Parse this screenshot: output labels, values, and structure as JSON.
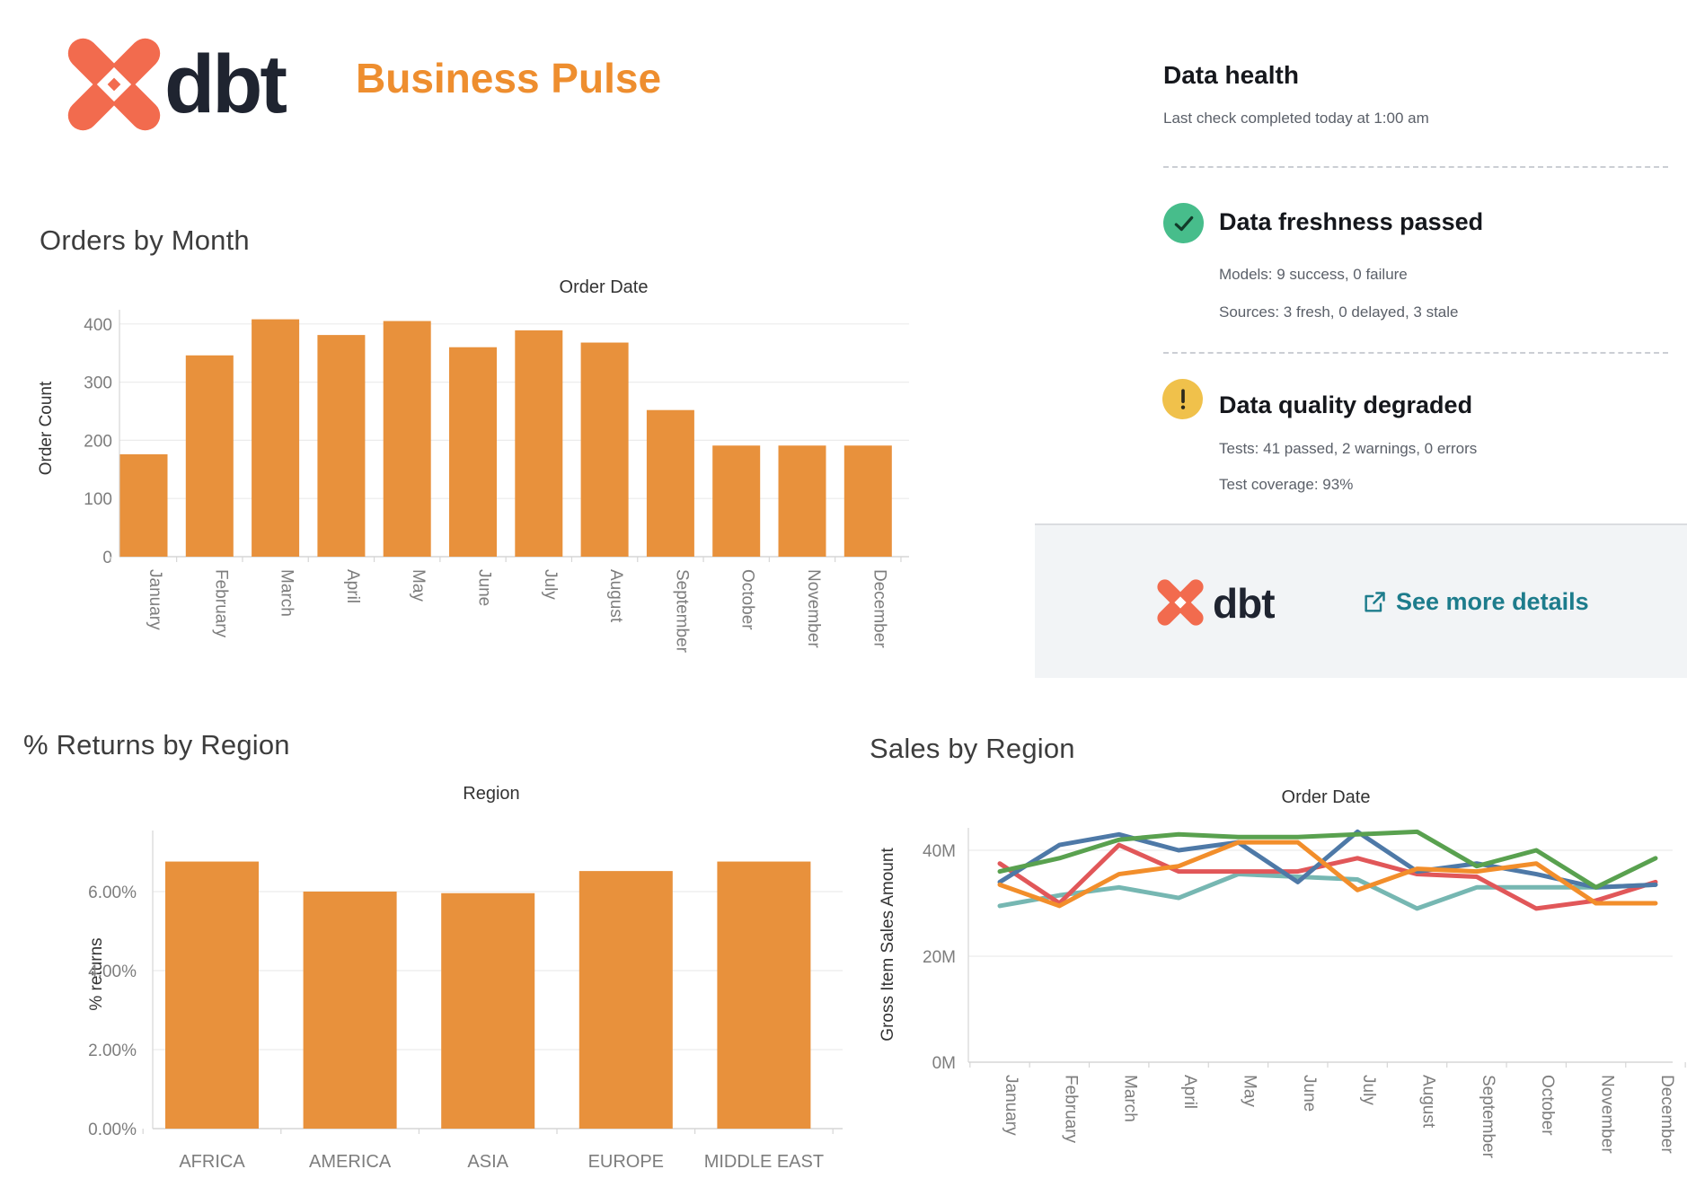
{
  "header": {
    "logo": "dbt-logo",
    "wordmark": "dbt",
    "title": "Business Pulse"
  },
  "data_health": {
    "title": "Data health",
    "subtitle": "Last check completed today at 1:00 am",
    "freshness": {
      "icon": "check-circle",
      "status_color": "#47BD8B",
      "title": "Data freshness passed",
      "models": "Models: 9 success, 0 failure",
      "sources": "Sources: 3 fresh, 0 delayed, 3 stale"
    },
    "quality": {
      "icon": "warning-circle",
      "status_color": "#F0C14B",
      "title": "Data quality degraded",
      "tests": "Tests: 41 passed, 2 warnings, 0 errors",
      "coverage": "Test coverage: 93%"
    },
    "footer": {
      "wordmark": "dbt",
      "link_label": "See more details",
      "link_color": "#1D7C8C"
    }
  },
  "chart_data": [
    {
      "type": "bar",
      "title": "Orders by Month",
      "axis_title": "Order Date",
      "xlabel": "Order Date",
      "ylabel": "Order Count",
      "categories": [
        "January",
        "February",
        "March",
        "April",
        "May",
        "June",
        "July",
        "August",
        "September",
        "October",
        "November",
        "December"
      ],
      "values": [
        176,
        346,
        408,
        381,
        405,
        360,
        389,
        368,
        252,
        191,
        191,
        191
      ],
      "yticks": [
        0,
        100,
        200,
        300,
        400
      ],
      "ytick_labels": [
        "0",
        "100",
        "200",
        "300",
        "400"
      ],
      "ylim": [
        0,
        425
      ],
      "bar_color": "#E8913C",
      "grid": true,
      "legend": "none"
    },
    {
      "type": "bar",
      "title": "% Returns by Region",
      "axis_title": "Region",
      "xlabel": "Region",
      "ylabel": "% returns",
      "categories": [
        "AFRICA",
        "AMERICA",
        "ASIA",
        "EUROPE",
        "MIDDLE EAST"
      ],
      "values": [
        6.76,
        6.0,
        5.96,
        6.52,
        6.76
      ],
      "yticks": [
        0,
        2,
        4,
        6
      ],
      "ytick_labels": [
        "0.00%",
        "2.00%",
        "4.00%",
        "6.00%"
      ],
      "ylim": [
        0,
        7.5
      ],
      "bar_color": "#E8913C",
      "grid": true,
      "legend": "none"
    },
    {
      "type": "line",
      "title": "Sales by Region",
      "axis_title": "Order Date",
      "xlabel": "Order Date",
      "ylabel": "Gross Item Sales Amount",
      "categories": [
        "January",
        "February",
        "March",
        "April",
        "May",
        "June",
        "July",
        "August",
        "September",
        "October",
        "November",
        "December"
      ],
      "yticks": [
        0,
        20,
        40
      ],
      "ytick_labels": [
        "0M",
        "20M",
        "40M"
      ],
      "ylim": [
        0,
        44
      ],
      "unit": "M",
      "grid": true,
      "legend": "none",
      "series": [
        {
          "name": "series-teal",
          "color": "#76B7B2",
          "values": [
            29.5,
            31.5,
            33,
            31,
            35.5,
            35,
            34.5,
            29,
            33,
            33,
            33,
            33.5
          ]
        },
        {
          "name": "series-red",
          "color": "#E15759",
          "values": [
            37.5,
            30,
            41,
            36,
            36,
            36,
            38.5,
            35.5,
            35,
            29,
            30.5,
            34
          ]
        },
        {
          "name": "series-blue",
          "color": "#4E79A7",
          "values": [
            34,
            41,
            43,
            40,
            41.5,
            34,
            43.5,
            36,
            37.5,
            35.5,
            33,
            33.5
          ]
        },
        {
          "name": "series-orange",
          "color": "#F28E2B",
          "values": [
            33.5,
            29.5,
            35.5,
            37,
            41.5,
            41.5,
            32.5,
            36.5,
            36,
            37.5,
            30,
            30
          ]
        },
        {
          "name": "series-green",
          "color": "#59A14F",
          "values": [
            36,
            38.5,
            42,
            43,
            42.5,
            42.5,
            43,
            43.5,
            37,
            40,
            33,
            38.5
          ]
        }
      ]
    }
  ]
}
